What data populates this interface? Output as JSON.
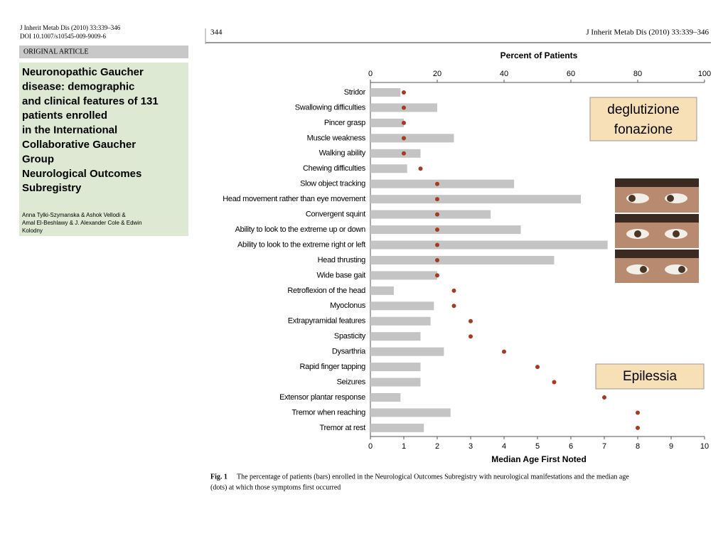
{
  "left_page": {
    "citation": "J Inherit Metab Dis (2010) 33:339–346",
    "doi": "DOI 10.1007/s10545-009-9009-6",
    "section": "ORIGINAL ARTICLE",
    "title_lines": [
      "Neuronopathic Gaucher",
      "disease: demographic",
      "and clinical features of 131",
      "patients enrolled",
      "in the International",
      "Collaborative Gaucher",
      "Group",
      "Neurological Outcomes",
      "Subregistry"
    ],
    "author_lines": [
      "Anna Tylki-Szymanska & Ashok Vellodi &",
      "Amal El-Beshlawy & J. Alexander Cole & Edwin",
      "Kolodny"
    ]
  },
  "right_page": {
    "page_number": "344",
    "citation": "J Inherit Metab Dis (2010) 33:339–346",
    "caption_label": "Fig. 1",
    "caption_lines": [
      "The percentage of patients (bars) enrolled in the Neurological Outcomes Subregistry with neurological manifestations and the median age",
      "(dots) at which those symptoms first occurred"
    ]
  },
  "callouts": {
    "swallowing": [
      "deglutizione",
      "fonazione"
    ],
    "seizures": "Epilessia"
  },
  "chart_data": {
    "type": "bar",
    "categories": [
      "Stridor",
      "Swallowing difficulties",
      "Pincer grasp",
      "Muscle weakness",
      "Walking ability",
      "Chewing difficulties",
      "Slow object tracking",
      "Head movement rather than eye movement",
      "Convergent squint",
      "Ability to look to the extreme up or down",
      "Ability to look to the extreme right or left",
      "Head thrusting",
      "Wide base gait",
      "Retroflexion of the head",
      "Myoclonus",
      "Extrapyramidal features",
      "Spasticity",
      "Dysarthria",
      "Rapid finger tapping",
      "Seizures",
      "Extensor plantar response",
      "Tremor when reaching",
      "Tremor at rest"
    ],
    "series": [
      {
        "name": "Percent of Patients",
        "color": "#c4c4c4",
        "axis": "x",
        "values": [
          9,
          20,
          10,
          25,
          15,
          11,
          43,
          63,
          36,
          45,
          71,
          55,
          20,
          7,
          19,
          18,
          15,
          22,
          15,
          15,
          9,
          24,
          16
        ]
      },
      {
        "name": "Median Age First Noted",
        "color": "#a63a22",
        "axis": "x2",
        "values": [
          1,
          1,
          1,
          1,
          1,
          1.5,
          2,
          2,
          2,
          2,
          2,
          2,
          2,
          2.5,
          2.5,
          3,
          3,
          4,
          5,
          5.5,
          7,
          8,
          8
        ]
      }
    ],
    "xlim": [
      0,
      100
    ],
    "xticks": [
      0,
      20,
      40,
      60,
      80,
      100
    ],
    "x2lim": [
      0,
      10
    ],
    "x2ticks": [
      0,
      1,
      2,
      3,
      4,
      5,
      6,
      7,
      8,
      9,
      10
    ]
  }
}
